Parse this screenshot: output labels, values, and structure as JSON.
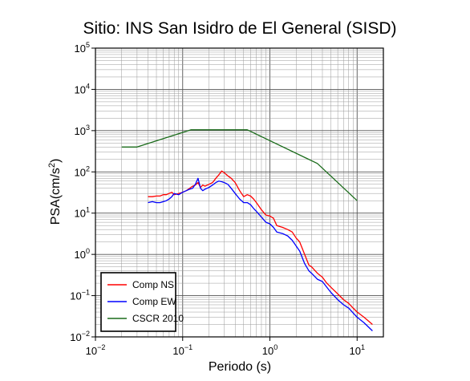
{
  "chart_data": {
    "type": "line",
    "title": "Sitio: INS San Isidro de El General (SISD)",
    "xlabel": "Periodo (s)",
    "ylabel_main": "PSA(cm/s",
    "ylabel_sup": "2",
    "ylabel_close": ")",
    "xscale": "log",
    "yscale": "log",
    "xlim": [
      0.01,
      20
    ],
    "ylim": [
      0.01,
      100000
    ],
    "grid": true,
    "legend_position": "bottom-left",
    "x_ticks": [
      {
        "value": 0.01,
        "base": "10",
        "exp": "−2"
      },
      {
        "value": 0.1,
        "base": "10",
        "exp": "−1"
      },
      {
        "value": 1,
        "base": "10",
        "exp": "0"
      },
      {
        "value": 10,
        "base": "10",
        "exp": "1"
      }
    ],
    "y_ticks": [
      {
        "value": 0.01,
        "base": "10",
        "exp": "−2"
      },
      {
        "value": 0.1,
        "base": "10",
        "exp": "−1"
      },
      {
        "value": 1,
        "base": "10",
        "exp": "0"
      },
      {
        "value": 10,
        "base": "10",
        "exp": "1"
      },
      {
        "value": 100,
        "base": "10",
        "exp": "2"
      },
      {
        "value": 1000,
        "base": "10",
        "exp": "3"
      },
      {
        "value": 10000,
        "base": "10",
        "exp": "4"
      },
      {
        "value": 100000,
        "base": "10",
        "exp": "5"
      }
    ],
    "series": [
      {
        "name": "Comp NS",
        "color": "#ff0000",
        "x": [
          0.04,
          0.045,
          0.05,
          0.055,
          0.06,
          0.065,
          0.07,
          0.075,
          0.08,
          0.09,
          0.1,
          0.11,
          0.12,
          0.13,
          0.14,
          0.15,
          0.16,
          0.17,
          0.18,
          0.2,
          0.22,
          0.24,
          0.26,
          0.28,
          0.3,
          0.33,
          0.36,
          0.4,
          0.45,
          0.5,
          0.55,
          0.6,
          0.65,
          0.7,
          0.8,
          0.9,
          1.0,
          1.1,
          1.2,
          1.4,
          1.6,
          1.8,
          2.0,
          2.2,
          2.5,
          2.8,
          3.0,
          3.5,
          4.0,
          4.5,
          5.0,
          6.0,
          7.0,
          8.0,
          9.0,
          10.0,
          12.0,
          15.0
        ],
        "values": [
          25,
          25,
          26,
          26,
          28,
          28,
          30,
          32,
          28,
          30,
          32,
          35,
          40,
          45,
          48,
          55,
          42,
          48,
          45,
          50,
          55,
          70,
          85,
          105,
          95,
          80,
          70,
          55,
          35,
          25,
          28,
          26,
          22,
          18,
          12,
          9,
          8.5,
          7.5,
          5,
          4.5,
          4,
          3.5,
          2.5,
          2.0,
          1.0,
          0.55,
          0.5,
          0.35,
          0.28,
          0.2,
          0.16,
          0.11,
          0.08,
          0.065,
          0.05,
          0.04,
          0.03,
          0.02
        ]
      },
      {
        "name": "Comp EW",
        "color": "#0000ff",
        "x": [
          0.04,
          0.045,
          0.05,
          0.055,
          0.06,
          0.065,
          0.07,
          0.075,
          0.08,
          0.09,
          0.1,
          0.11,
          0.12,
          0.13,
          0.14,
          0.15,
          0.16,
          0.17,
          0.18,
          0.2,
          0.22,
          0.24,
          0.26,
          0.28,
          0.3,
          0.33,
          0.36,
          0.4,
          0.45,
          0.5,
          0.55,
          0.6,
          0.65,
          0.7,
          0.8,
          0.9,
          1.0,
          1.1,
          1.2,
          1.4,
          1.6,
          1.8,
          2.0,
          2.2,
          2.5,
          2.8,
          3.0,
          3.5,
          4.0,
          4.5,
          5.0,
          6.0,
          7.0,
          8.0,
          9.0,
          10.0,
          12.0,
          15.0
        ],
        "values": [
          18,
          19,
          18,
          18,
          19,
          20,
          22,
          25,
          30,
          28,
          32,
          35,
          38,
          40,
          50,
          70,
          40,
          35,
          38,
          42,
          48,
          55,
          60,
          58,
          55,
          50,
          40,
          30,
          22,
          18,
          18,
          16,
          13,
          11,
          8,
          6,
          5.5,
          4.5,
          3.5,
          3.2,
          2.8,
          2.2,
          1.6,
          1.2,
          0.6,
          0.4,
          0.35,
          0.25,
          0.22,
          0.16,
          0.12,
          0.08,
          0.06,
          0.05,
          0.038,
          0.03,
          0.022,
          0.014
        ]
      },
      {
        "name": "CSCR 2010",
        "color": "#1a6b1a",
        "x": [
          0.02,
          0.03,
          0.125,
          0.55,
          3.5,
          10.0
        ],
        "values": [
          400,
          400,
          1050,
          1050,
          160,
          20
        ]
      }
    ]
  }
}
